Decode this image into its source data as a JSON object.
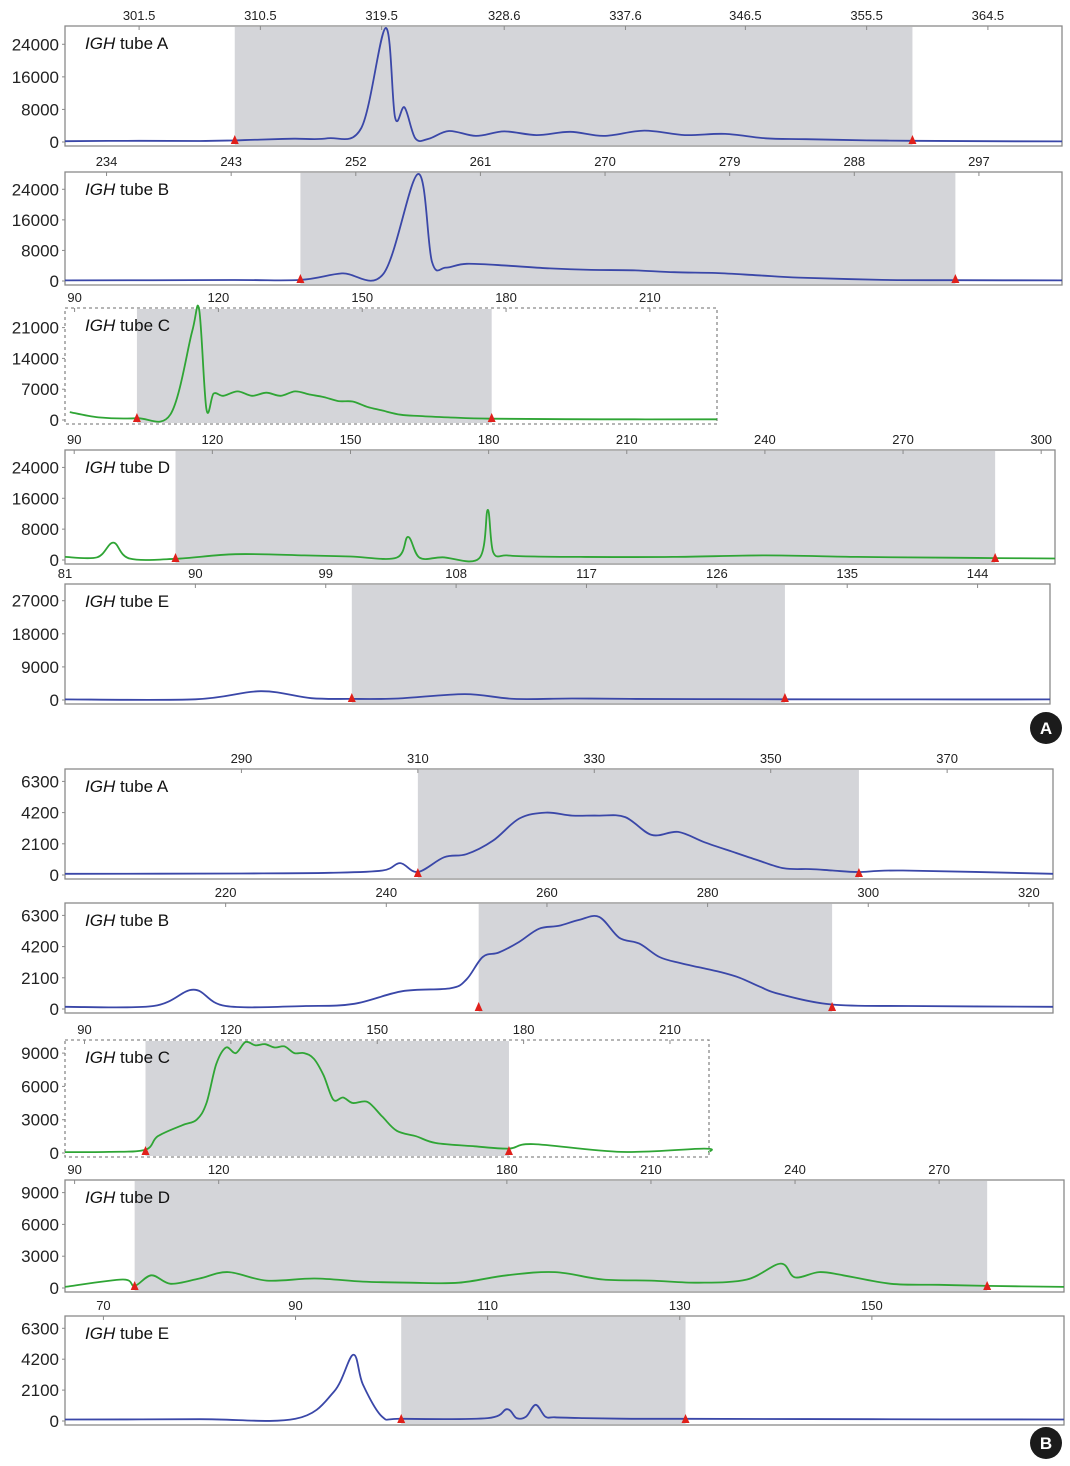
{
  "colors": {
    "blue": "#3a47a8",
    "green": "#2fa535",
    "shade": "#d4d5d9",
    "marker": "#e0201b",
    "frame": "#8a8a8a",
    "badge": "#1b1b1b"
  },
  "chart_data": [
    {
      "type": "line",
      "panel_label": "A",
      "tube": "IGH tube A",
      "x_ticks": [
        "301.5",
        "310.5",
        "319.5",
        "328.6",
        "337.6",
        "346.5",
        "355.5",
        "364.5"
      ],
      "y_ticks": [
        "0",
        "8000",
        "16000",
        "24000"
      ],
      "ylim": [
        0,
        28000
      ],
      "xlim": [
        296,
        370
      ],
      "shaded_range": [
        308.6,
        358.9
      ],
      "color": "blue",
      "series": [
        {
          "x": [
            296,
            301.5,
            306,
            308.6,
            310.5,
            313,
            315.5,
            318,
            319.8,
            320.5,
            321.2,
            322,
            323,
            324.5,
            326.5,
            328.6,
            331,
            333.5,
            336,
            339,
            342,
            345,
            348,
            351,
            355.5,
            358.9,
            364.5,
            370
          ],
          "y": [
            200,
            300,
            250,
            400,
            600,
            800,
            900,
            3500,
            28000,
            6000,
            8500,
            900,
            800,
            2700,
            1500,
            2600,
            1700,
            2500,
            1500,
            2800,
            1700,
            2000,
            900,
            700,
            400,
            300,
            200,
            150
          ]
        }
      ]
    },
    {
      "type": "line",
      "panel_label": "A",
      "tube": "IGH tube B",
      "x_ticks": [
        "234",
        "243",
        "252",
        "261",
        "270",
        "279",
        "288",
        "297"
      ],
      "y_ticks": [
        "0",
        "8000",
        "16000",
        "24000"
      ],
      "ylim": [
        0,
        28000
      ],
      "xlim": [
        231,
        303
      ],
      "shaded_range": [
        248,
        295.3
      ],
      "color": "blue",
      "series": [
        {
          "x": [
            231,
            243,
            248,
            251,
            254,
            256.5,
            257.5,
            258.5,
            260,
            263,
            266,
            269,
            272,
            275,
            278,
            281,
            284,
            290,
            295.3,
            303
          ],
          "y": [
            150,
            250,
            300,
            2000,
            1900,
            28000,
            5000,
            3500,
            4500,
            4000,
            3300,
            2900,
            2800,
            2300,
            2100,
            1500,
            900,
            300,
            200,
            150
          ]
        }
      ]
    },
    {
      "type": "line",
      "panel_label": "A",
      "tube": "IGH tube C",
      "x_ticks": [
        "90",
        "120",
        "150",
        "180",
        "210"
      ],
      "y_ticks": [
        "0",
        "7000",
        "14000",
        "21000"
      ],
      "ylim": [
        0,
        25000
      ],
      "xlim": [
        88,
        224
      ],
      "shaded_range": [
        103,
        177
      ],
      "color": "green",
      "series": [
        {
          "x": [
            89,
            95,
            103,
            110,
            114.5,
            116,
            117.5,
            119,
            121,
            124,
            127,
            130,
            133,
            136,
            139,
            142,
            145,
            148,
            151,
            154,
            158,
            162,
            168,
            177,
            200,
            224
          ],
          "y": [
            1800,
            600,
            400,
            1300,
            20000,
            25000,
            2500,
            6000,
            5500,
            6500,
            5500,
            6200,
            5500,
            6500,
            5800,
            5200,
            4300,
            4200,
            3000,
            2200,
            1200,
            900,
            600,
            300,
            150,
            150
          ]
        }
      ]
    },
    {
      "type": "line",
      "panel_label": "A",
      "tube": "IGH tube D",
      "x_ticks": [
        "90",
        "120",
        "150",
        "180",
        "210",
        "240",
        "270",
        "300"
      ],
      "y_ticks": [
        "0",
        "8000",
        "16000",
        "24000"
      ],
      "ylim": [
        0,
        28000
      ],
      "xlim": [
        88,
        303
      ],
      "shaded_range": [
        112,
        290
      ],
      "color": "green",
      "series": [
        {
          "x": [
            88,
            95,
            98.5,
            102,
            112,
            125,
            140,
            150,
            160,
            162.5,
            165,
            170,
            178,
            179.8,
            181,
            184,
            190,
            200,
            220,
            240,
            260,
            280,
            290,
            303
          ],
          "y": [
            800,
            700,
            4500,
            400,
            300,
            1500,
            1200,
            900,
            600,
            6000,
            600,
            700,
            500,
            13000,
            2000,
            1200,
            900,
            800,
            800,
            1200,
            800,
            600,
            500,
            400
          ]
        }
      ]
    },
    {
      "type": "line",
      "panel_label": "A",
      "tube": "IGH tube E",
      "x_ticks": [
        "81",
        "90",
        "99",
        "108",
        "117",
        "126",
        "135",
        "144"
      ],
      "y_ticks": [
        "0",
        "9000",
        "18000",
        "27000"
      ],
      "ylim": [
        0,
        31000
      ],
      "xlim": [
        81,
        149
      ],
      "shaded_range": [
        100.8,
        130.7
      ],
      "color": "blue",
      "series": [
        {
          "x": [
            81,
            90,
            94.5,
            98,
            100.8,
            104,
            108.6,
            112,
            116,
            120,
            125,
            130.7,
            140,
            149
          ],
          "y": [
            150,
            200,
            2400,
            500,
            300,
            400,
            1600,
            300,
            400,
            300,
            250,
            200,
            150,
            150
          ]
        }
      ]
    },
    {
      "type": "line",
      "panel_label": "B",
      "tube": "IGH tube A",
      "x_ticks": [
        "290",
        "310",
        "330",
        "350",
        "370"
      ],
      "y_ticks": [
        "0",
        "2100",
        "4200",
        "6300"
      ],
      "ylim": [
        0,
        7000
      ],
      "xlim": [
        270,
        382
      ],
      "shaded_range": [
        310,
        360
      ],
      "color": "blue",
      "series": [
        {
          "x": [
            270,
            290,
            300,
            306,
            308,
            310,
            313,
            315.5,
            318.5,
            321.5,
            324.5,
            327.5,
            330.5,
            333.5,
            336.5,
            339.5,
            342.5,
            345.5,
            348.5,
            351.5,
            354.5,
            357,
            360,
            365,
            382
          ],
          "y": [
            80,
            100,
            150,
            300,
            800,
            200,
            1200,
            1400,
            2300,
            3800,
            4200,
            4000,
            4000,
            3900,
            2700,
            2900,
            2200,
            1600,
            1000,
            450,
            400,
            300,
            200,
            300,
            80
          ]
        }
      ]
    },
    {
      "type": "line",
      "panel_label": "B",
      "tube": "IGH tube B",
      "x_ticks": [
        "220",
        "240",
        "260",
        "280",
        "300",
        "320"
      ],
      "y_ticks": [
        "0",
        "2100",
        "4200",
        "6300"
      ],
      "ylim": [
        0,
        7000
      ],
      "xlim": [
        200,
        323
      ],
      "shaded_range": [
        251.5,
        295.5
      ],
      "color": "blue",
      "series": [
        {
          "x": [
            200,
            211,
            216,
            220,
            230,
            236,
            242,
            248,
            250,
            252,
            254,
            256.5,
            259,
            261.5,
            264,
            266.5,
            269,
            271.5,
            274,
            276.5,
            279,
            281.5,
            284,
            286.5,
            289,
            295.5,
            305,
            323
          ],
          "y": [
            150,
            200,
            1300,
            200,
            200,
            350,
            1200,
            1400,
            2000,
            3500,
            3800,
            4500,
            5400,
            5600,
            6000,
            6200,
            4800,
            4400,
            3500,
            3100,
            2800,
            2500,
            2100,
            1500,
            1000,
            300,
            200,
            150
          ]
        }
      ]
    },
    {
      "type": "line",
      "panel_label": "B",
      "tube": "IGH tube C",
      "x_ticks": [
        "90",
        "120",
        "150",
        "180",
        "210"
      ],
      "y_ticks": [
        "0",
        "3000",
        "6000",
        "9000"
      ],
      "ylim": [
        0,
        10000
      ],
      "xlim": [
        86,
        218
      ],
      "shaded_range": [
        102.5,
        177
      ],
      "color": "green",
      "series": [
        {
          "x": [
            86,
            95,
            102.5,
            105,
            110,
            113,
            115,
            117,
            119,
            121,
            123,
            125,
            127,
            129,
            131,
            133,
            135,
            137,
            139,
            141,
            143,
            145,
            148,
            151,
            154,
            158,
            162,
            170,
            177,
            182,
            200,
            217,
            218
          ],
          "y": [
            80,
            100,
            300,
            1500,
            2500,
            3000,
            4500,
            8000,
            9500,
            9000,
            10000,
            9700,
            9800,
            9500,
            9600,
            9000,
            9000,
            8500,
            7000,
            4800,
            5000,
            4500,
            4600,
            3300,
            2000,
            1500,
            900,
            600,
            400,
            800,
            100,
            400,
            100
          ]
        }
      ]
    },
    {
      "type": "line",
      "panel_label": "B",
      "tube": "IGH tube D",
      "x_ticks": [
        "90",
        "120",
        "180",
        "210",
        "240",
        "270"
      ],
      "y_ticks": [
        "0",
        "3000",
        "6000",
        "9000"
      ],
      "ylim": [
        0,
        10000
      ],
      "xlim": [
        88,
        296
      ],
      "shaded_range": [
        102.5,
        280
      ],
      "color": "green",
      "series": [
        {
          "x": [
            88,
            100,
            102.5,
            106,
            110,
            116,
            122,
            130,
            140,
            150,
            160,
            170,
            180,
            190,
            200,
            210,
            220,
            230,
            237,
            240,
            245,
            250,
            260,
            270,
            280,
            296
          ],
          "y": [
            100,
            800,
            200,
            1200,
            400,
            900,
            1500,
            700,
            900,
            600,
            500,
            500,
            1200,
            1500,
            800,
            700,
            500,
            800,
            2300,
            1000,
            1500,
            1200,
            400,
            300,
            200,
            100
          ]
        }
      ]
    },
    {
      "type": "line",
      "panel_label": "B",
      "tube": "IGH tube E",
      "x_ticks": [
        "70",
        "90",
        "110",
        "130",
        "150"
      ],
      "y_ticks": [
        "0",
        "2100",
        "4200",
        "6300"
      ],
      "ylim": [
        0,
        7000
      ],
      "xlim": [
        66,
        170
      ],
      "shaded_range": [
        101,
        130.6
      ],
      "color": "blue",
      "series": [
        {
          "x": [
            66,
            80,
            90,
            94,
            96,
            97,
            99,
            101,
            110,
            112,
            113,
            114,
            115,
            116,
            117,
            120,
            125,
            130.6,
            150,
            170
          ],
          "y": [
            100,
            120,
            150,
            2000,
            4500,
            2500,
            300,
            150,
            200,
            800,
            200,
            300,
            1100,
            300,
            250,
            200,
            150,
            150,
            120,
            100
          ]
        }
      ]
    }
  ],
  "badges": {
    "first": "A",
    "second": "B"
  }
}
